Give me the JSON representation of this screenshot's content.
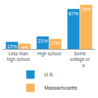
{
  "chart_data": {
    "type": "bar",
    "categories": [
      "Less than high school",
      "High school",
      "Some college or more"
    ],
    "series": [
      {
        "name": "U.S.",
        "color": "#1a8fd2",
        "values": [
          12,
          21,
          67
        ],
        "value_labels": [
          "12%",
          "21%",
          "67%"
        ]
      },
      {
        "name": "Massachusetts",
        "color": "#fbb45c",
        "values": [
          9,
          17,
          74
        ],
        "value_labels": [
          "9%",
          "17%",
          "74%"
        ]
      }
    ],
    "ylim": [
      0,
      75
    ],
    "data_labels": true,
    "tick_labels": "x",
    "grid": false,
    "legend": "bottom"
  }
}
